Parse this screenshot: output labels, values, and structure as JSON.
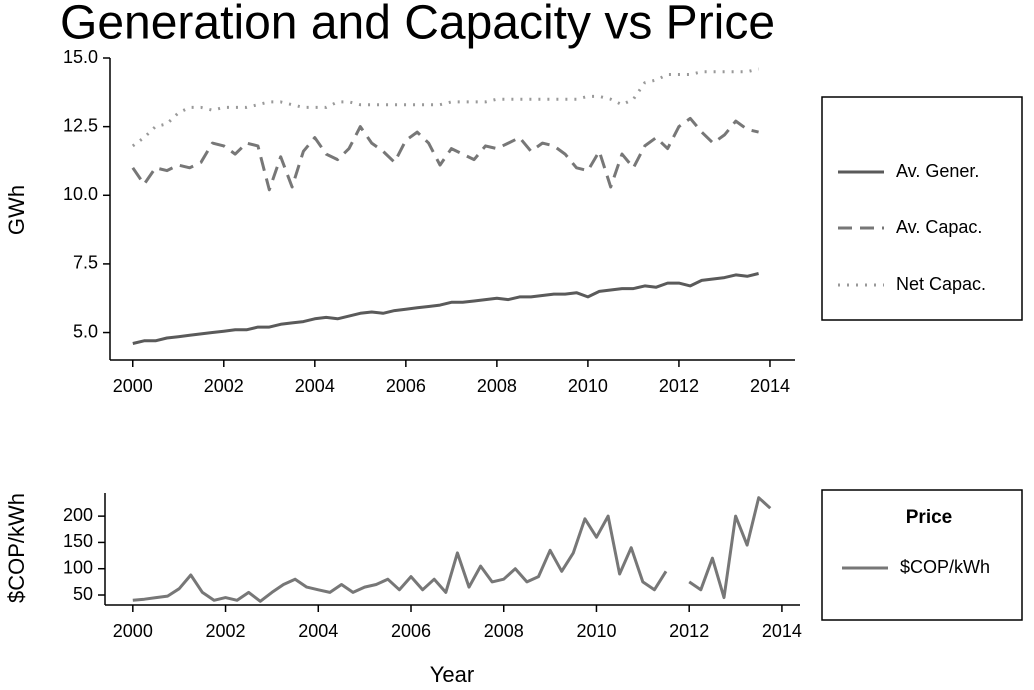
{
  "chart_data": [
    {
      "type": "line",
      "title": "Generation and Capacity vs Price",
      "y_label": "GWh",
      "x": [
        2000,
        2000.25,
        2000.5,
        2000.75,
        2001,
        2001.25,
        2001.5,
        2001.75,
        2002,
        2002.25,
        2002.5,
        2002.75,
        2003,
        2003.25,
        2003.5,
        2003.75,
        2004,
        2004.25,
        2004.5,
        2004.75,
        2005,
        2005.25,
        2005.5,
        2005.75,
        2006,
        2006.25,
        2006.5,
        2006.75,
        2007,
        2007.25,
        2007.5,
        2007.75,
        2008,
        2008.25,
        2008.5,
        2008.75,
        2009,
        2009.25,
        2009.5,
        2009.75,
        2010,
        2010.25,
        2010.5,
        2010.75,
        2011,
        2011.25,
        2011.5,
        2011.75,
        2012,
        2012.25,
        2012.5,
        2012.75,
        2013,
        2013.25,
        2013.5,
        2013.75
      ],
      "series": [
        {
          "name": "Av. Gener.",
          "color": "#5a5a5a",
          "style": "solid",
          "values": [
            4.6,
            4.7,
            4.7,
            4.8,
            4.85,
            4.9,
            4.95,
            5.0,
            5.05,
            5.1,
            5.1,
            5.2,
            5.2,
            5.3,
            5.35,
            5.4,
            5.5,
            5.55,
            5.5,
            5.6,
            5.7,
            5.75,
            5.7,
            5.8,
            5.85,
            5.9,
            5.95,
            6.0,
            6.1,
            6.1,
            6.15,
            6.2,
            6.25,
            6.2,
            6.3,
            6.3,
            6.35,
            6.4,
            6.4,
            6.45,
            6.3,
            6.5,
            6.55,
            6.6,
            6.6,
            6.7,
            6.65,
            6.8,
            6.8,
            6.7,
            6.9,
            6.95,
            7.0,
            7.1,
            7.05,
            7.15
          ]
        },
        {
          "name": "Av. Capac.",
          "color": "#777777",
          "style": "dashed",
          "values": [
            11.0,
            10.4,
            11.0,
            10.9,
            11.1,
            11.0,
            11.2,
            11.9,
            11.8,
            11.5,
            11.9,
            11.8,
            10.2,
            11.4,
            10.3,
            11.6,
            12.1,
            11.5,
            11.3,
            11.7,
            12.5,
            11.9,
            11.6,
            11.2,
            12.0,
            12.3,
            11.9,
            11.1,
            11.7,
            11.5,
            11.3,
            11.8,
            11.7,
            11.9,
            12.1,
            11.6,
            11.9,
            11.8,
            11.5,
            11.0,
            10.9,
            11.6,
            10.3,
            11.5,
            11.0,
            11.8,
            12.1,
            11.7,
            12.5,
            12.8,
            12.3,
            11.9,
            12.2,
            12.7,
            12.4,
            12.3
          ]
        },
        {
          "name": "Net Capac.",
          "color": "#999999",
          "style": "dotted",
          "values": [
            11.8,
            12.1,
            12.5,
            12.6,
            13.0,
            13.2,
            13.2,
            13.1,
            13.2,
            13.2,
            13.2,
            13.3,
            13.4,
            13.4,
            13.3,
            13.2,
            13.2,
            13.2,
            13.4,
            13.4,
            13.3,
            13.3,
            13.3,
            13.3,
            13.3,
            13.3,
            13.3,
            13.3,
            13.4,
            13.4,
            13.4,
            13.4,
            13.5,
            13.5,
            13.5,
            13.5,
            13.5,
            13.5,
            13.5,
            13.5,
            13.6,
            13.6,
            13.5,
            13.3,
            13.5,
            14.1,
            14.2,
            14.4,
            14.4,
            14.4,
            14.5,
            14.5,
            14.5,
            14.5,
            14.5,
            14.6
          ]
        }
      ],
      "xlim": [
        1999.5,
        2014.55
      ],
      "xticks": [
        2000,
        2002,
        2004,
        2006,
        2008,
        2010,
        2012,
        2014
      ],
      "ylim": [
        4,
        15
      ],
      "yticks": [
        {
          "value": 5,
          "label": "5.0"
        },
        7.5,
        {
          "value": 10,
          "label": "10.0"
        },
        12.5,
        {
          "value": 15,
          "label": "15.0"
        }
      ]
    },
    {
      "type": "line",
      "x_label": "Year",
      "y_label": "$COP/kWh",
      "legend_title": "Price",
      "x": [
        2000,
        2000.25,
        2000.5,
        2000.75,
        2001,
        2001.25,
        2001.5,
        2001.75,
        2002,
        2002.25,
        2002.5,
        2002.75,
        2003,
        2003.25,
        2003.5,
        2003.75,
        2004,
        2004.25,
        2004.5,
        2004.75,
        2005,
        2005.25,
        2005.5,
        2005.75,
        2006,
        2006.25,
        2006.5,
        2006.75,
        2007,
        2007.25,
        2007.5,
        2007.75,
        2008,
        2008.25,
        2008.5,
        2008.75,
        2009,
        2009.25,
        2009.5,
        2009.75,
        2010,
        2010.25,
        2010.5,
        2010.75,
        2011,
        2011.25,
        2011.5,
        2011.75,
        2012,
        2012.25,
        2012.5,
        2012.75,
        2013,
        2013.25,
        2013.5,
        2013.75
      ],
      "series": [
        {
          "name": "$COP/kWh",
          "color": "#777777",
          "style": "solid",
          "values": [
            40,
            42,
            45,
            48,
            62,
            88,
            55,
            40,
            45,
            40,
            55,
            38,
            55,
            70,
            80,
            65,
            60,
            55,
            70,
            55,
            65,
            70,
            80,
            60,
            85,
            60,
            80,
            55,
            130,
            65,
            105,
            75,
            80,
            100,
            75,
            85,
            135,
            95,
            130,
            195,
            160,
            200,
            90,
            140,
            75,
            60,
            95,
            null,
            75,
            60,
            120,
            45,
            200,
            145,
            235,
            215
          ]
        }
      ],
      "xlim": [
        1999.4,
        2014.39
      ],
      "xticks": [
        2000,
        2002,
        2004,
        2006,
        2008,
        2010,
        2012,
        2014
      ],
      "ylim": [
        31,
        244
      ],
      "yticks": [
        50,
        100,
        150,
        200
      ]
    }
  ]
}
